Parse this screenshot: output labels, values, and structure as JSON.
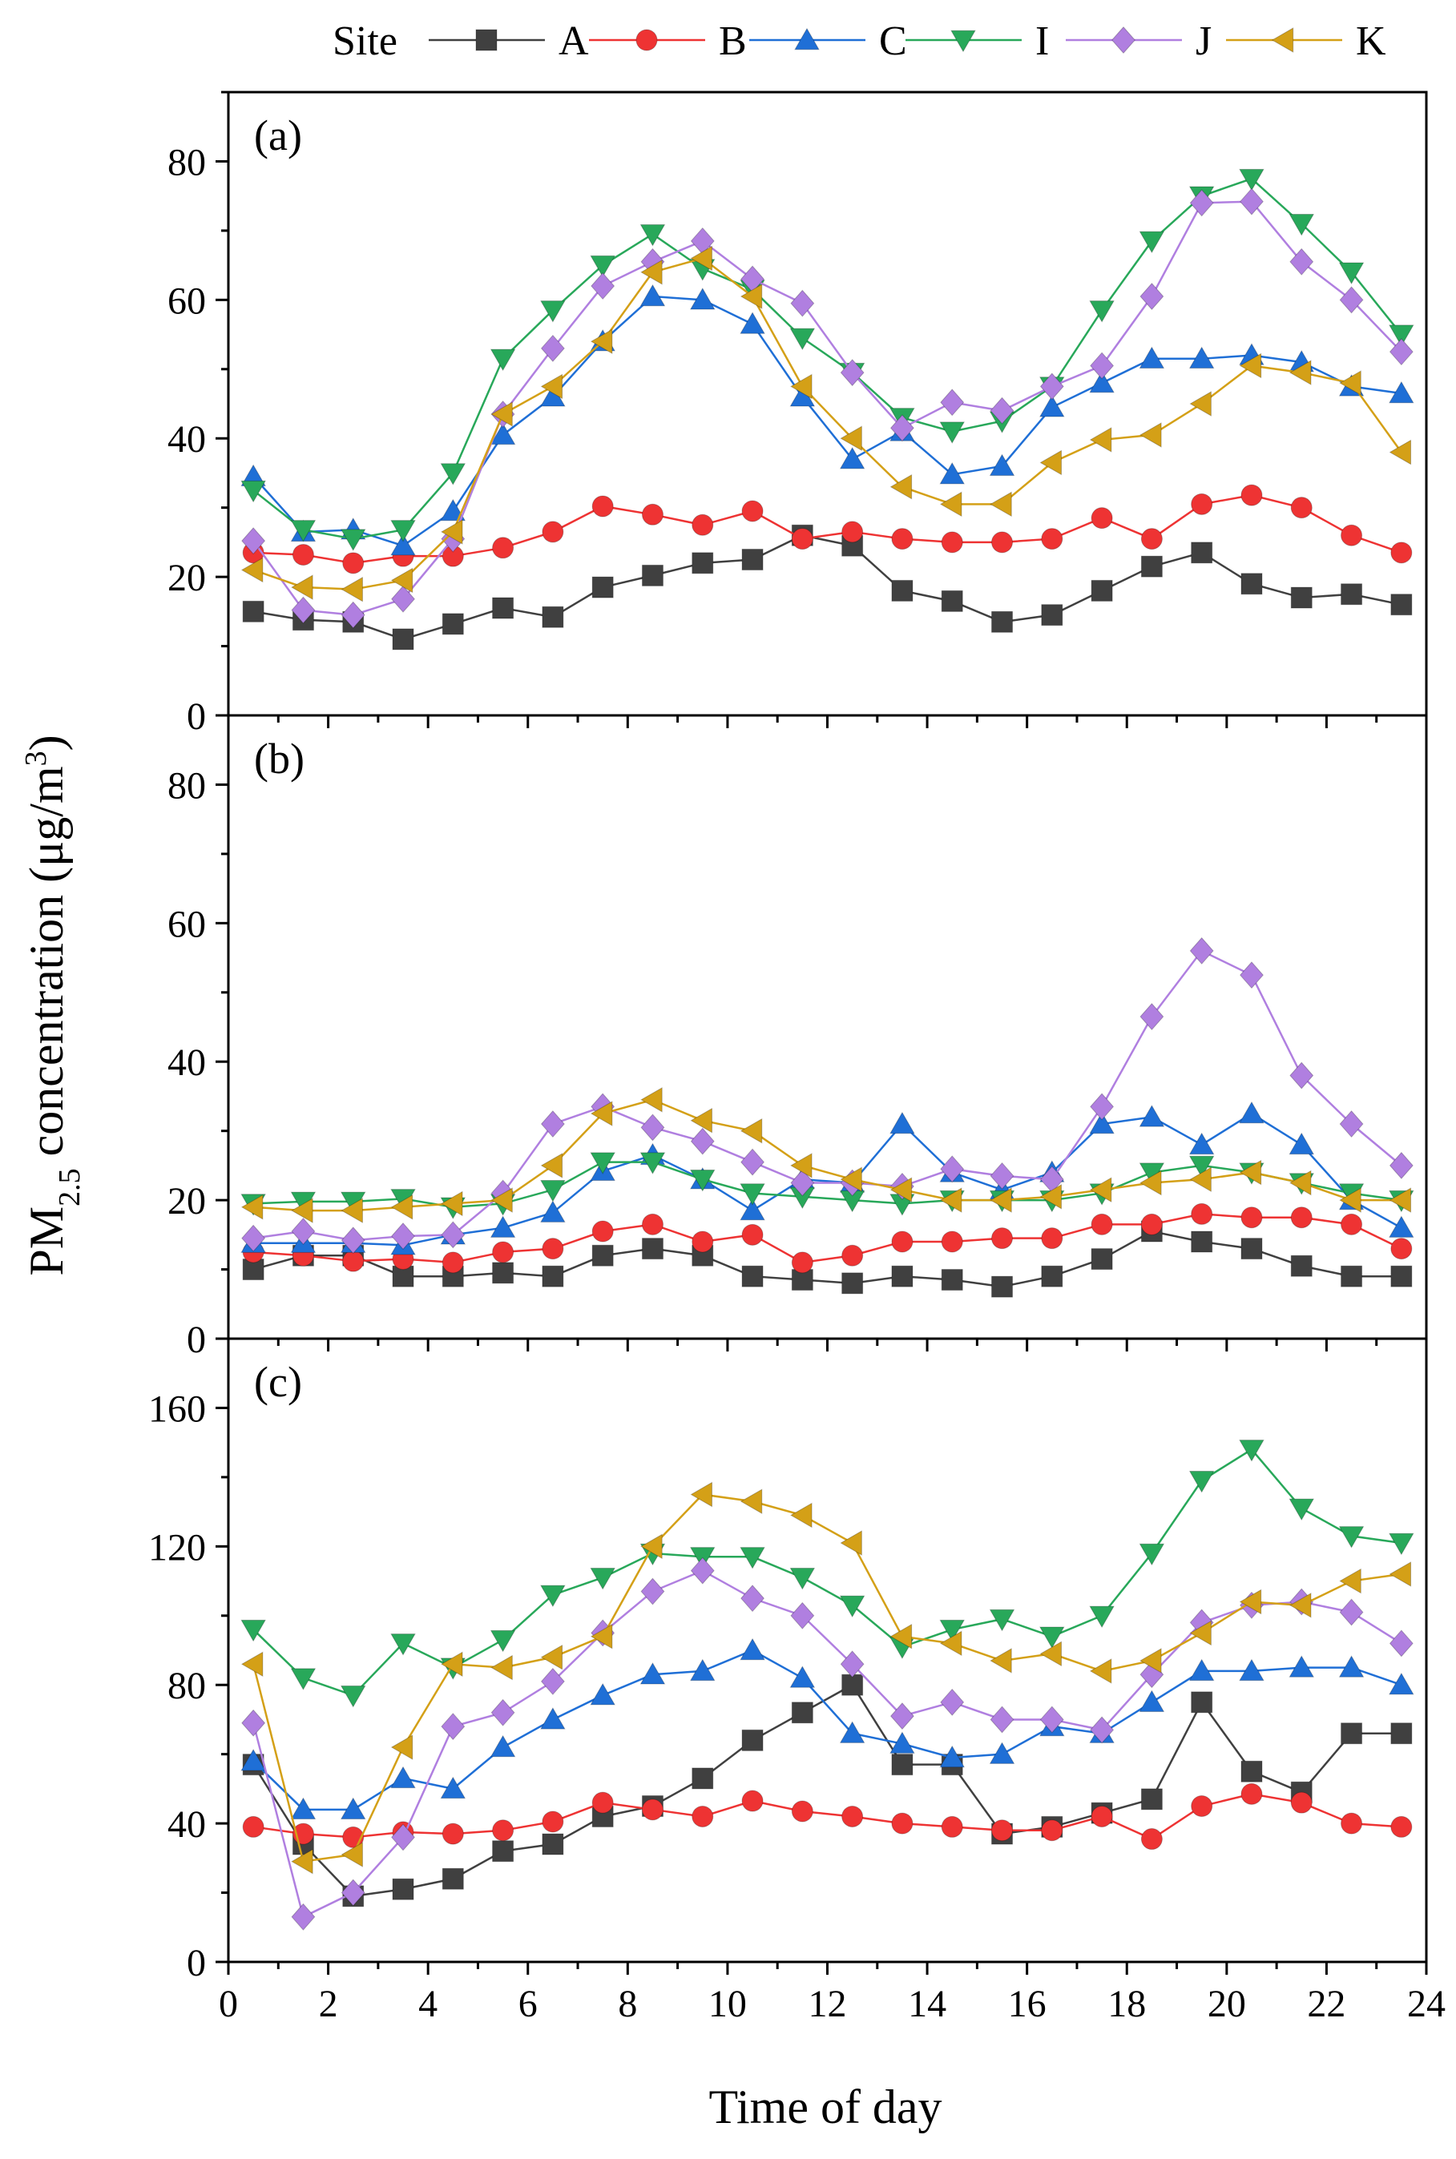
{
  "legend": {
    "title": "Site",
    "entries": [
      {
        "name": "A",
        "color": "#404040",
        "marker": "square"
      },
      {
        "name": "B",
        "color": "#ee3333",
        "marker": "circle"
      },
      {
        "name": "C",
        "color": "#1f6fd6",
        "marker": "triangle-up"
      },
      {
        "name": "I",
        "color": "#28a85a",
        "marker": "triangle-down"
      },
      {
        "name": "J",
        "color": "#b07fe0",
        "marker": "diamond"
      },
      {
        "name": "K",
        "color": "#d4a017",
        "marker": "triangle-left"
      }
    ]
  },
  "axis_titles": {
    "x": "Time of day",
    "y_main": "PM",
    "y_sub": "2.5",
    "y_rest": " concentration (μg/m",
    "y_sup": "3",
    "y_close": ")"
  },
  "chart_data": [
    {
      "type": "line",
      "panel_label": "(a)",
      "xlabel": "Time of day",
      "ylabel": "PM2.5 concentration (μg/m3)",
      "xlim": [
        0,
        24
      ],
      "ylim": [
        0,
        90
      ],
      "xticks": [
        0,
        2,
        4,
        6,
        8,
        10,
        12,
        14,
        16,
        18,
        20,
        22,
        24
      ],
      "yticks": [
        0,
        20,
        40,
        60,
        80
      ],
      "x": [
        0.5,
        1.5,
        2.5,
        3.5,
        4.5,
        5.5,
        6.5,
        7.5,
        8.5,
        9.5,
        10.5,
        11.5,
        12.5,
        13.5,
        14.5,
        15.5,
        16.5,
        17.5,
        18.5,
        19.5,
        20.5,
        21.5,
        22.5,
        23.5
      ],
      "series": [
        {
          "name": "A",
          "values": [
            15,
            13.8,
            13.5,
            11,
            13.2,
            15.5,
            14.2,
            18.5,
            20.2,
            22,
            22.5,
            26,
            24.5,
            18,
            16.5,
            13.5,
            14.5,
            18,
            21.5,
            23.5,
            19,
            17,
            17.5,
            16
          ]
        },
        {
          "name": "B",
          "values": [
            23.5,
            23.2,
            22,
            23,
            23,
            24.2,
            26.5,
            30.2,
            29,
            27.5,
            29.5,
            25.5,
            26.5,
            25.5,
            25,
            25,
            25.5,
            28.5,
            25.5,
            30.5,
            31.8,
            30,
            26,
            23.5
          ]
        },
        {
          "name": "C",
          "values": [
            34.5,
            26.5,
            26.8,
            24.5,
            29.5,
            40.5,
            46,
            54,
            60.5,
            60,
            56.5,
            46,
            37,
            41,
            34.8,
            36,
            44.5,
            48,
            51.5,
            51.5,
            52,
            51,
            47.5,
            46.5
          ]
        },
        {
          "name": "I",
          "values": [
            32.5,
            26.8,
            25.5,
            26.8,
            35,
            51.5,
            58.5,
            65,
            69.5,
            64.5,
            61.5,
            54.5,
            49.5,
            43,
            41,
            42.5,
            47.5,
            58.5,
            68.5,
            75,
            77.5,
            71,
            64,
            55
          ]
        },
        {
          "name": "J",
          "values": [
            25.2,
            15.2,
            14.5,
            16.8,
            25.5,
            43.5,
            53,
            62,
            65.5,
            68.5,
            63,
            59.5,
            49.5,
            41.5,
            45.2,
            44,
            47.5,
            50.5,
            60.5,
            74,
            74.2,
            65.5,
            60,
            52.5
          ]
        },
        {
          "name": "K",
          "values": [
            21,
            18.5,
            18.2,
            19.5,
            26.5,
            43.5,
            47.5,
            54,
            64,
            66,
            60.5,
            47.5,
            40,
            33,
            30.5,
            30.5,
            36.5,
            39.8,
            40.5,
            45,
            50.5,
            49.5,
            48,
            38
          ]
        }
      ]
    },
    {
      "type": "line",
      "panel_label": "(b)",
      "xlabel": "Time of day",
      "ylabel": "PM2.5 concentration (μg/m3)",
      "xlim": [
        0,
        24
      ],
      "ylim": [
        0,
        90
      ],
      "xticks": [
        0,
        2,
        4,
        6,
        8,
        10,
        12,
        14,
        16,
        18,
        20,
        22,
        24
      ],
      "yticks": [
        0,
        20,
        40,
        60,
        80
      ],
      "x": [
        0.5,
        1.5,
        2.5,
        3.5,
        4.5,
        5.5,
        6.5,
        7.5,
        8.5,
        9.5,
        10.5,
        11.5,
        12.5,
        13.5,
        14.5,
        15.5,
        16.5,
        17.5,
        18.5,
        19.5,
        20.5,
        21.5,
        22.5,
        23.5
      ],
      "series": [
        {
          "name": "A",
          "values": [
            10,
            12,
            12,
            9,
            9,
            9.5,
            9,
            12,
            13,
            12,
            9,
            8.5,
            8,
            9,
            8.5,
            7.5,
            9,
            11.5,
            15.5,
            14,
            13,
            10.5,
            9,
            9
          ]
        },
        {
          "name": "B",
          "values": [
            12.5,
            12,
            11.2,
            11.5,
            11,
            12.5,
            13,
            15.5,
            16.5,
            14,
            15,
            11,
            12,
            14,
            14,
            14.5,
            14.5,
            16.5,
            16.5,
            18,
            17.5,
            17.5,
            16.5,
            13
          ]
        },
        {
          "name": "C",
          "values": [
            13.8,
            13.8,
            13.8,
            13.5,
            15,
            16,
            18.2,
            24.2,
            26.5,
            23,
            18.5,
            23,
            22.5,
            31,
            24,
            21.5,
            24,
            31,
            32,
            28,
            32.5,
            28,
            20,
            16
          ]
        },
        {
          "name": "I",
          "values": [
            19.5,
            19.8,
            19.8,
            20.2,
            19,
            19.5,
            21.5,
            25.5,
            25.5,
            23,
            21,
            20.5,
            20,
            19.5,
            20,
            20,
            20,
            21,
            24,
            25,
            24,
            22.5,
            21,
            20
          ]
        },
        {
          "name": "J",
          "values": [
            14.5,
            15.5,
            14.2,
            14.8,
            15,
            21,
            31,
            33.5,
            30.5,
            28.5,
            25.5,
            22.5,
            22.5,
            22,
            24.5,
            23.5,
            23,
            33.5,
            46.5,
            56,
            52.5,
            38,
            31,
            25
          ]
        },
        {
          "name": "K",
          "values": [
            19,
            18.5,
            18.5,
            19,
            19.5,
            20,
            25,
            32.5,
            34.5,
            31.5,
            30,
            25,
            23,
            21.5,
            20,
            20,
            20.5,
            21.5,
            22.5,
            23,
            24,
            22.5,
            20,
            20
          ]
        }
      ]
    },
    {
      "type": "line",
      "panel_label": "(c)",
      "xlabel": "Time of day",
      "ylabel": "PM2.5 concentration (μg/m3)",
      "xlim": [
        0,
        24
      ],
      "ylim": [
        0,
        180
      ],
      "xticks": [
        0,
        2,
        4,
        6,
        8,
        10,
        12,
        14,
        16,
        18,
        20,
        22,
        24
      ],
      "yticks": [
        0,
        40,
        80,
        120,
        160
      ],
      "x": [
        0.5,
        1.5,
        2.5,
        3.5,
        4.5,
        5.5,
        6.5,
        7.5,
        8.5,
        9.5,
        10.5,
        11.5,
        12.5,
        13.5,
        14.5,
        15.5,
        16.5,
        17.5,
        18.5,
        19.5,
        20.5,
        21.5,
        22.5,
        23.5
      ],
      "series": [
        {
          "name": "A",
          "values": [
            57,
            34,
            19,
            21,
            24,
            32,
            34,
            42,
            45,
            53,
            64,
            72,
            80,
            57,
            57,
            37,
            39,
            43,
            47,
            75,
            55,
            49,
            66,
            66
          ]
        },
        {
          "name": "B",
          "values": [
            39,
            37,
            36,
            37.5,
            37,
            38,
            40.5,
            46,
            44,
            42,
            46.5,
            43.5,
            42,
            40,
            39,
            38,
            38,
            42,
            35.5,
            45,
            48.5,
            46,
            40,
            39
          ]
        },
        {
          "name": "C",
          "values": [
            58,
            44,
            44,
            53,
            50,
            62,
            70,
            77,
            83,
            84,
            90,
            82,
            66,
            63,
            59,
            60,
            68,
            66,
            75,
            84,
            84,
            85,
            85,
            80
          ]
        },
        {
          "name": "I",
          "values": [
            96,
            82,
            77,
            92,
            85,
            93,
            106,
            111,
            118,
            117,
            117,
            111,
            103,
            91,
            96,
            99,
            94,
            100,
            118,
            139,
            148,
            131,
            123,
            121
          ]
        },
        {
          "name": "J",
          "values": [
            69,
            13,
            20,
            36,
            68,
            72,
            81,
            95,
            107,
            113,
            105,
            100,
            86,
            71,
            75,
            70,
            70,
            67,
            83,
            98,
            103,
            104,
            101,
            92
          ]
        },
        {
          "name": "K",
          "values": [
            86,
            29,
            31,
            62,
            86,
            85,
            88,
            94,
            120,
            135,
            133,
            129,
            121,
            94,
            92,
            87,
            89,
            84,
            87,
            95,
            104,
            103,
            110,
            112
          ]
        }
      ]
    }
  ]
}
